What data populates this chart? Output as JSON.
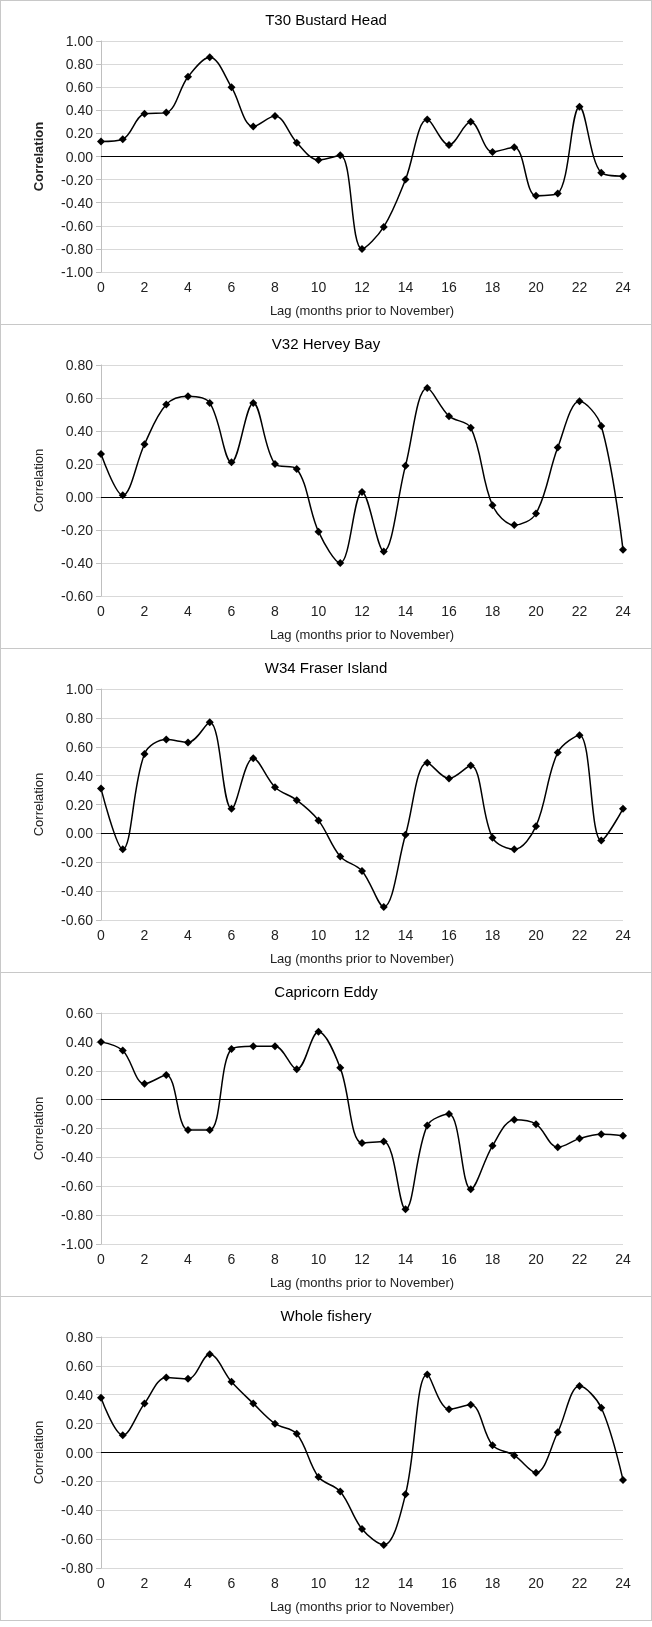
{
  "chart_data": [
    {
      "type": "line",
      "title": "T30 Bustard Head",
      "xlabel": "Lag (months prior to November)",
      "ylabel": "Correlation",
      "x": [
        0,
        1,
        2,
        3,
        4,
        5,
        6,
        7,
        8,
        9,
        10,
        11,
        12,
        13,
        14,
        15,
        16,
        17,
        18,
        19,
        20,
        21,
        22,
        23,
        24
      ],
      "series": [
        {
          "color": "#000000",
          "values": [
            0.13,
            0.15,
            0.37,
            0.38,
            0.69,
            0.86,
            0.6,
            0.26,
            0.35,
            0.12,
            -0.03,
            0.01,
            -0.8,
            -0.61,
            -0.2,
            0.32,
            0.1,
            0.3,
            0.04,
            0.08,
            -0.34,
            -0.32,
            0.43,
            -0.14,
            -0.17
          ]
        }
      ],
      "xlim": [
        0,
        24
      ],
      "xticks": [
        0,
        2,
        4,
        6,
        8,
        10,
        12,
        14,
        16,
        18,
        20,
        22,
        24
      ],
      "ylim": [
        -1,
        1
      ],
      "yticks": [
        {
          "value": -1,
          "label": "-1.00"
        },
        {
          "value": -0.8,
          "label": "-0.80"
        },
        {
          "value": -0.6,
          "label": "-0.60"
        },
        {
          "value": -0.4,
          "label": "-0.40"
        },
        {
          "value": -0.2,
          "label": "-0.20"
        },
        {
          "value": 0,
          "label": "0.00"
        },
        {
          "value": 0.2,
          "label": "0.20"
        },
        {
          "value": 0.4,
          "label": "0.40"
        },
        {
          "value": 0.6,
          "label": "0.60"
        },
        {
          "value": 0.8,
          "label": "0.80"
        },
        {
          "value": 1,
          "label": "1.00"
        }
      ],
      "ref_lines": [
        {
          "axis": "y",
          "value": 0,
          "color": "#000000"
        }
      ],
      "grid": "y",
      "marker": "diamond",
      "line_style": "solid"
    },
    {
      "type": "line",
      "title": "V32 Hervey Bay",
      "xlabel": "Lag (months prior to November)",
      "ylabel": "Correlation",
      "x": [
        0,
        1,
        2,
        3,
        4,
        5,
        6,
        7,
        8,
        9,
        10,
        11,
        12,
        13,
        14,
        15,
        16,
        17,
        18,
        19,
        20,
        21,
        22,
        23,
        24
      ],
      "series": [
        {
          "color": "#000000",
          "values": [
            0.26,
            0.01,
            0.32,
            0.56,
            0.61,
            0.57,
            0.21,
            0.57,
            0.2,
            0.17,
            -0.21,
            -0.4,
            0.03,
            -0.33,
            0.19,
            0.66,
            0.49,
            0.42,
            -0.05,
            -0.17,
            -0.1,
            0.3,
            0.58,
            0.43,
            -0.32
          ]
        }
      ],
      "xlim": [
        0,
        24
      ],
      "xticks": [
        0,
        2,
        4,
        6,
        8,
        10,
        12,
        14,
        16,
        18,
        20,
        22,
        24
      ],
      "ylim": [
        -0.6,
        0.8
      ],
      "yticks": [
        {
          "value": -0.6,
          "label": "-0.60"
        },
        {
          "value": -0.4,
          "label": "-0.40"
        },
        {
          "value": -0.2,
          "label": "-0.20"
        },
        {
          "value": 0,
          "label": "0.00"
        },
        {
          "value": 0.2,
          "label": "0.20"
        },
        {
          "value": 0.4,
          "label": "0.40"
        },
        {
          "value": 0.6,
          "label": "0.60"
        },
        {
          "value": 0.8,
          "label": "0.80"
        }
      ],
      "ref_lines": [
        {
          "axis": "y",
          "value": 0,
          "color": "#000000"
        }
      ],
      "grid": "y",
      "marker": "diamond",
      "line_style": "solid"
    },
    {
      "type": "line",
      "title": "W34 Fraser Island",
      "xlabel": "Lag (months prior to November)",
      "ylabel": "Correlation",
      "x": [
        0,
        1,
        2,
        3,
        4,
        5,
        6,
        7,
        8,
        9,
        10,
        11,
        12,
        13,
        14,
        15,
        16,
        17,
        18,
        19,
        20,
        21,
        22,
        23,
        24
      ],
      "series": [
        {
          "color": "#000000",
          "values": [
            0.31,
            -0.11,
            0.55,
            0.65,
            0.63,
            0.77,
            0.17,
            0.52,
            0.32,
            0.23,
            0.09,
            -0.16,
            -0.26,
            -0.51,
            -0.01,
            0.49,
            0.38,
            0.47,
            -0.03,
            -0.11,
            0.05,
            0.56,
            0.68,
            -0.05,
            0.17
          ]
        }
      ],
      "xlim": [
        0,
        24
      ],
      "xticks": [
        0,
        2,
        4,
        6,
        8,
        10,
        12,
        14,
        16,
        18,
        20,
        22,
        24
      ],
      "ylim": [
        -0.6,
        1
      ],
      "yticks": [
        {
          "value": -0.6,
          "label": "-0.60"
        },
        {
          "value": -0.4,
          "label": "-0.40"
        },
        {
          "value": -0.2,
          "label": "-0.20"
        },
        {
          "value": 0,
          "label": "0.00"
        },
        {
          "value": 0.2,
          "label": "0.20"
        },
        {
          "value": 0.4,
          "label": "0.40"
        },
        {
          "value": 0.6,
          "label": "0.60"
        },
        {
          "value": 0.8,
          "label": "0.80"
        },
        {
          "value": 1,
          "label": "1.00"
        }
      ],
      "ref_lines": [
        {
          "axis": "y",
          "value": 0,
          "color": "#000000"
        }
      ],
      "grid": "y",
      "marker": "diamond",
      "line_style": "solid"
    },
    {
      "type": "line",
      "title": "Capricorn Eddy",
      "xlabel": "Lag (months prior to November)",
      "ylabel": "Correlation",
      "x": [
        0,
        1,
        2,
        3,
        4,
        5,
        6,
        7,
        8,
        9,
        10,
        11,
        12,
        13,
        14,
        15,
        16,
        17,
        18,
        19,
        20,
        21,
        22,
        23,
        24
      ],
      "series": [
        {
          "color": "#000000",
          "values": [
            0.4,
            0.34,
            0.11,
            0.17,
            -0.21,
            -0.21,
            0.35,
            0.37,
            0.37,
            0.21,
            0.47,
            0.22,
            -0.3,
            -0.29,
            -0.76,
            -0.18,
            -0.1,
            -0.62,
            -0.32,
            -0.14,
            -0.17,
            -0.33,
            -0.27,
            -0.24,
            -0.25
          ]
        }
      ],
      "xlim": [
        0,
        24
      ],
      "xticks": [
        0,
        2,
        4,
        6,
        8,
        10,
        12,
        14,
        16,
        18,
        20,
        22,
        24
      ],
      "ylim": [
        -1,
        0.6
      ],
      "yticks": [
        {
          "value": -1,
          "label": "-1.00"
        },
        {
          "value": -0.8,
          "label": "-0.80"
        },
        {
          "value": -0.6,
          "label": "-0.60"
        },
        {
          "value": -0.4,
          "label": "-0.40"
        },
        {
          "value": -0.2,
          "label": "-0.20"
        },
        {
          "value": 0,
          "label": "0.00"
        },
        {
          "value": 0.2,
          "label": "0.20"
        },
        {
          "value": 0.4,
          "label": "0.40"
        },
        {
          "value": 0.6,
          "label": "0.60"
        }
      ],
      "ref_lines": [
        {
          "axis": "y",
          "value": 0,
          "color": "#000000"
        }
      ],
      "grid": "y",
      "marker": "diamond",
      "line_style": "solid"
    },
    {
      "type": "line",
      "title": "Whole fishery",
      "xlabel": "Lag (months prior to November)",
      "ylabel": "Correlation",
      "x": [
        0,
        1,
        2,
        3,
        4,
        5,
        6,
        7,
        8,
        9,
        10,
        11,
        12,
        13,
        14,
        15,
        16,
        17,
        18,
        19,
        20,
        21,
        22,
        23,
        24
      ],
      "series": [
        {
          "color": "#000000",
          "values": [
            0.38,
            0.12,
            0.34,
            0.52,
            0.51,
            0.68,
            0.49,
            0.34,
            0.2,
            0.13,
            -0.17,
            -0.27,
            -0.53,
            -0.64,
            -0.29,
            0.54,
            0.3,
            0.33,
            0.05,
            -0.02,
            -0.14,
            0.14,
            0.46,
            0.31,
            -0.19
          ]
        }
      ],
      "xlim": [
        0,
        24
      ],
      "xticks": [
        0,
        2,
        4,
        6,
        8,
        10,
        12,
        14,
        16,
        18,
        20,
        22,
        24
      ],
      "ylim": [
        -0.8,
        0.8
      ],
      "yticks": [
        {
          "value": -0.8,
          "label": "-0.80"
        },
        {
          "value": -0.6,
          "label": "-0.60"
        },
        {
          "value": -0.4,
          "label": "-0.40"
        },
        {
          "value": -0.2,
          "label": "-0.20"
        },
        {
          "value": 0,
          "label": "0.00"
        },
        {
          "value": 0.2,
          "label": "0.20"
        },
        {
          "value": 0.4,
          "label": "0.40"
        },
        {
          "value": 0.6,
          "label": "0.60"
        },
        {
          "value": 0.8,
          "label": "0.80"
        }
      ],
      "ref_lines": [
        {
          "axis": "y",
          "value": 0,
          "color": "#000000"
        }
      ],
      "grid": "y",
      "marker": "diamond",
      "line_style": "solid"
    }
  ]
}
